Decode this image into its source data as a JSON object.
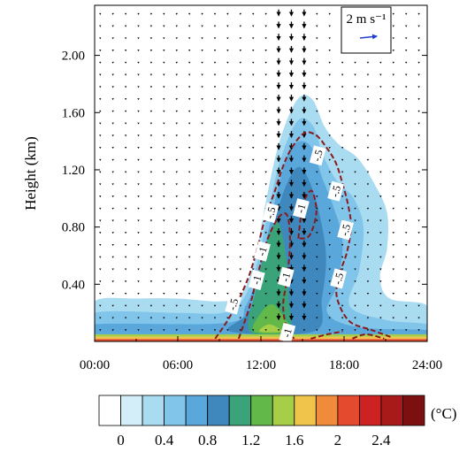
{
  "chart_data": {
    "type": "heatmap",
    "title": "",
    "xlabel": "",
    "ylabel": "Height (km)",
    "x_ticks": [
      "00:00",
      "06:00",
      "12:00",
      "18:00",
      "24:00"
    ],
    "x_range_hours": [
      0,
      24
    ],
    "y_ticks": [
      "0.40",
      "0.80",
      "1.20",
      "1.60",
      "2.00"
    ],
    "y_range_km": [
      0.0,
      2.35
    ],
    "fill_variable_unit": "(°C)",
    "colorbar": {
      "ticks": [
        "0",
        "0.4",
        "0.8",
        "1.2",
        "1.6",
        "2",
        "2.4"
      ],
      "levels": [
        0,
        0.2,
        0.4,
        0.6,
        0.8,
        1.0,
        1.2,
        1.4,
        1.6,
        1.8,
        2.0,
        2.2,
        2.4
      ],
      "colors": [
        "#ffffff",
        "#d4eef9",
        "#a9dbf1",
        "#82c5ea",
        "#5aa7dc",
        "#3f88bd",
        "#3aa37a",
        "#62b848",
        "#a6cf47",
        "#f0c44a",
        "#f08b3b",
        "#e44a2d",
        "#cc2222",
        "#a81919",
        "#7c1010"
      ]
    },
    "shaded_regions": [
      {
        "level": 0.2,
        "outline": [
          [
            0,
            0.28
          ],
          [
            3,
            0.3
          ],
          [
            6,
            0.3
          ],
          [
            9,
            0.28
          ],
          [
            10.5,
            0.32
          ],
          [
            11.5,
            0.55
          ],
          [
            12.3,
            0.95
          ],
          [
            13.2,
            1.35
          ],
          [
            14.2,
            1.62
          ],
          [
            15.0,
            1.72
          ],
          [
            15.8,
            1.68
          ],
          [
            16.6,
            1.5
          ],
          [
            17.6,
            1.38
          ],
          [
            19.0,
            1.28
          ],
          [
            20.2,
            1.1
          ],
          [
            21.1,
            0.9
          ],
          [
            21.1,
            0.65
          ],
          [
            20.6,
            0.45
          ],
          [
            21.3,
            0.3
          ],
          [
            24,
            0.25
          ],
          [
            24,
            0.05
          ],
          [
            0,
            0.05
          ]
        ]
      },
      {
        "level": 0.4,
        "outline": [
          [
            0,
            0.2
          ],
          [
            6,
            0.2
          ],
          [
            9.2,
            0.2
          ],
          [
            10.6,
            0.28
          ],
          [
            11.6,
            0.5
          ],
          [
            12.4,
            0.85
          ],
          [
            13.2,
            1.2
          ],
          [
            14.1,
            1.45
          ],
          [
            14.9,
            1.56
          ],
          [
            15.8,
            1.5
          ],
          [
            16.5,
            1.3
          ],
          [
            17.5,
            1.12
          ],
          [
            18.7,
            1.0
          ],
          [
            19.4,
            0.8
          ],
          [
            19.1,
            0.5
          ],
          [
            18.4,
            0.25
          ],
          [
            21,
            0.15
          ],
          [
            24,
            0.12
          ],
          [
            24,
            0.05
          ],
          [
            0,
            0.05
          ]
        ]
      },
      {
        "level": 0.6,
        "outline": [
          [
            0,
            0.12
          ],
          [
            9.5,
            0.13
          ],
          [
            10.9,
            0.25
          ],
          [
            11.8,
            0.48
          ],
          [
            12.6,
            0.8
          ],
          [
            13.3,
            1.1
          ],
          [
            14.1,
            1.34
          ],
          [
            14.9,
            1.4
          ],
          [
            15.7,
            1.35
          ],
          [
            16.4,
            1.15
          ],
          [
            17.2,
            0.95
          ],
          [
            17.9,
            0.7
          ],
          [
            17.5,
            0.4
          ],
          [
            16.8,
            0.2
          ],
          [
            19,
            0.1
          ],
          [
            24,
            0.08
          ],
          [
            24,
            0.05
          ],
          [
            0,
            0.05
          ]
        ]
      },
      {
        "level": 0.8,
        "outline": [
          [
            9.8,
            0.07
          ],
          [
            11.1,
            0.2
          ],
          [
            12.0,
            0.42
          ],
          [
            12.7,
            0.7
          ],
          [
            13.3,
            0.95
          ],
          [
            14.1,
            1.15
          ],
          [
            14.8,
            1.22
          ],
          [
            15.5,
            1.12
          ],
          [
            16.2,
            0.9
          ],
          [
            16.7,
            0.6
          ],
          [
            16.4,
            0.3
          ],
          [
            15.8,
            0.07
          ]
        ]
      },
      {
        "level": 1.0,
        "outline": [
          [
            11.2,
            0.07
          ],
          [
            11.6,
            0.35
          ],
          [
            12.2,
            0.6
          ],
          [
            12.7,
            0.78
          ],
          [
            13.3,
            0.82
          ],
          [
            13.8,
            0.6
          ],
          [
            14.0,
            0.3
          ],
          [
            14.0,
            0.07
          ]
        ]
      },
      {
        "level": 1.2,
        "outline": [
          [
            11.5,
            0.07
          ],
          [
            12.0,
            0.2
          ],
          [
            12.8,
            0.26
          ],
          [
            13.6,
            0.18
          ],
          [
            14.0,
            0.07
          ]
        ]
      },
      {
        "level": 1.4,
        "outline": [
          [
            11.9,
            0.07
          ],
          [
            12.6,
            0.12
          ],
          [
            13.5,
            0.07
          ]
        ]
      }
    ],
    "surface_band": {
      "top_km": 0.05,
      "colors": [
        "#a6cf47",
        "#f0c44a",
        "#e44a2d"
      ]
    },
    "contours": [
      {
        "value": -0.5,
        "line": [
          [
            8.7,
            0.02
          ],
          [
            9.8,
            0.18
          ],
          [
            10.9,
            0.4
          ],
          [
            11.6,
            0.6
          ],
          [
            12.3,
            0.86
          ],
          [
            13.0,
            1.05
          ],
          [
            13.7,
            1.25
          ],
          [
            14.4,
            1.38
          ],
          [
            15.2,
            1.46
          ],
          [
            16.0,
            1.44
          ],
          [
            16.7,
            1.36
          ],
          [
            17.4,
            1.25
          ],
          [
            17.9,
            1.1
          ],
          [
            18.3,
            0.95
          ],
          [
            18.5,
            0.8
          ],
          [
            18.2,
            0.62
          ],
          [
            17.6,
            0.45
          ],
          [
            17.5,
            0.3
          ],
          [
            18.4,
            0.14
          ],
          [
            20.0,
            0.08
          ],
          [
            21.4,
            0.03
          ]
        ]
      },
      {
        "value": -1,
        "line": [
          [
            10.4,
            0.02
          ],
          [
            11.2,
            0.25
          ],
          [
            11.8,
            0.48
          ],
          [
            12.5,
            0.72
          ],
          [
            13.3,
            0.87
          ],
          [
            13.9,
            0.88
          ],
          [
            14.1,
            0.7
          ],
          [
            13.9,
            0.45
          ],
          [
            13.6,
            0.25
          ],
          [
            13.9,
            0.08
          ],
          [
            14.4,
            0.02
          ]
        ]
      },
      {
        "value": -1,
        "line": [
          [
            14.7,
            0.72
          ],
          [
            14.9,
            0.88
          ],
          [
            15.2,
            1.0
          ],
          [
            15.7,
            1.05
          ],
          [
            16.0,
            0.9
          ],
          [
            15.5,
            0.74
          ],
          [
            14.7,
            0.72
          ]
        ]
      },
      {
        "value": -0.5,
        "line": [
          [
            15.6,
            0.02
          ],
          [
            16.8,
            0.05
          ],
          [
            17.9,
            0.07
          ]
        ]
      },
      {
        "value": -0.5,
        "line": [
          [
            18.6,
            0.02
          ],
          [
            19.6,
            0.05
          ],
          [
            20.9,
            0.02
          ]
        ]
      }
    ],
    "contour_labels": [
      {
        "text": "-.5",
        "x": 16.1,
        "y": 1.3
      },
      {
        "text": "-.5",
        "x": 17.4,
        "y": 1.05
      },
      {
        "text": "-.5",
        "x": 12.7,
        "y": 0.9
      },
      {
        "text": "-1",
        "x": 14.9,
        "y": 0.93
      },
      {
        "text": "-.5",
        "x": 18.1,
        "y": 0.78
      },
      {
        "text": "-1",
        "x": 12.1,
        "y": 0.63
      },
      {
        "text": "-1",
        "x": 11.7,
        "y": 0.43
      },
      {
        "text": "-1",
        "x": 13.8,
        "y": 0.45
      },
      {
        "text": "-.5",
        "x": 17.6,
        "y": 0.44
      },
      {
        "text": "-.5",
        "x": 10.0,
        "y": 0.26
      },
      {
        "text": "-1",
        "x": 13.9,
        "y": 0.06
      }
    ],
    "wind_vectors": {
      "reference_label": "2 m s⁻¹",
      "reference_speed_ms": 2,
      "updraft_columns_hours": [
        13.5,
        14.1,
        14.5,
        15.0
      ],
      "field": "mostly calm; downward arrows in 13–15 h columns"
    }
  }
}
